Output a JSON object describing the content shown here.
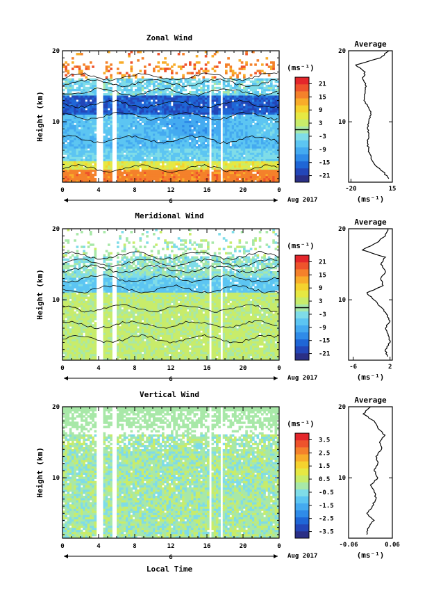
{
  "chart_data": [
    {
      "type": "heatmap",
      "panel": "zonal",
      "title": "Zonal Wind",
      "ylabel": "Height (km)",
      "xlabel": "",
      "x_ticks": [
        "0",
        "4",
        "8",
        "12",
        "16",
        "20",
        "0"
      ],
      "y_ticks": [
        "20",
        "10"
      ],
      "xlim": [
        0,
        24
      ],
      "ylim": [
        1.5,
        20
      ],
      "date_label": "6",
      "date_suffix": "Aug 2017",
      "colorbar": {
        "unit": "(ms⁻¹)",
        "ticks": [
          "21",
          "15",
          "9",
          "3",
          "-3",
          "-9",
          "-15",
          "-21"
        ],
        "range": [
          -24,
          24
        ],
        "black_line_at": 0,
        "colors": [
          "#2a2f86",
          "#2346b8",
          "#1f66d6",
          "#2f8be8",
          "#44aaf0",
          "#5cc5f2",
          "#7fdce8",
          "#a8e8a8",
          "#c8ec6a",
          "#e6e843",
          "#f5d22e",
          "#f8ac2a",
          "#f4812b",
          "#ee532c",
          "#e4262b"
        ]
      },
      "data_gaps_hours": [
        [
          3.8,
          4.4
        ],
        [
          5.6,
          6.1
        ],
        [
          16.2,
          16.6
        ],
        [
          17.4,
          17.8
        ]
      ],
      "profile": {
        "title": "Average",
        "xlabel": "(ms⁻¹)",
        "x_ticks": [
          "-20",
          "15"
        ],
        "xlim": [
          -22,
          15
        ],
        "y_ticks": [
          "20",
          "10"
        ],
        "heights": [
          2,
          3,
          4,
          5,
          6,
          7,
          8,
          9,
          10,
          11,
          12,
          13,
          14,
          15,
          16,
          17,
          18,
          19,
          20
        ],
        "values": [
          12,
          7,
          0,
          -3,
          -5,
          -6,
          -5,
          -6,
          -5,
          -3,
          -5,
          -9,
          -8,
          -7,
          -10,
          -8,
          -16,
          5,
          12
        ]
      }
    },
    {
      "type": "heatmap",
      "panel": "meridional",
      "title": "Meridional Wind",
      "ylabel": "Height (km)",
      "xlabel": "",
      "x_ticks": [
        "0",
        "4",
        "8",
        "12",
        "16",
        "20",
        "0"
      ],
      "y_ticks": [
        "20",
        "10"
      ],
      "xlim": [
        0,
        24
      ],
      "ylim": [
        1.5,
        20
      ],
      "date_label": "6",
      "date_suffix": "Aug 2017",
      "colorbar": {
        "unit": "(ms⁻¹)",
        "ticks": [
          "21",
          "15",
          "9",
          "3",
          "-3",
          "-9",
          "-15",
          "-21"
        ],
        "range": [
          -24,
          24
        ],
        "black_line_at": 0,
        "colors": [
          "#2a2f86",
          "#2346b8",
          "#1f66d6",
          "#2f8be8",
          "#44aaf0",
          "#5cc5f2",
          "#7fdce8",
          "#a8e8a8",
          "#c8ec6a",
          "#e6e843",
          "#f5d22e",
          "#f8ac2a",
          "#f4812b",
          "#ee532c",
          "#e4262b"
        ]
      },
      "data_gaps_hours": [
        [
          3.8,
          4.4
        ],
        [
          5.6,
          6.1
        ],
        [
          16.2,
          16.6
        ],
        [
          17.4,
          17.8
        ]
      ],
      "profile": {
        "title": "Average",
        "xlabel": "(ms⁻¹)",
        "x_ticks": [
          "-6",
          "2"
        ],
        "xlim": [
          -7,
          2.5
        ],
        "y_ticks": [
          "20",
          "10"
        ],
        "heights": [
          2,
          3,
          4,
          5,
          6,
          7,
          8,
          9,
          10,
          11,
          12,
          13,
          14,
          15,
          16,
          17,
          18,
          19,
          20
        ],
        "values": [
          1.5,
          1,
          2,
          1.6,
          1,
          2,
          1.2,
          0,
          -1.5,
          -3,
          0.5,
          0,
          1,
          0,
          1,
          -4,
          -1,
          1,
          1.5
        ]
      }
    },
    {
      "type": "heatmap",
      "panel": "vertical",
      "title": "Vertical Wind",
      "ylabel": "Height (km)",
      "xlabel": "Local Time",
      "x_ticks": [
        "0",
        "4",
        "8",
        "12",
        "16",
        "20",
        "0"
      ],
      "y_ticks": [
        "20",
        "10"
      ],
      "xlim": [
        0,
        24
      ],
      "ylim": [
        1.5,
        20
      ],
      "date_label": "6",
      "date_suffix": "Aug 2017",
      "colorbar": {
        "unit": "(ms⁻¹)",
        "ticks": [
          "3.5",
          "2.5",
          "1.5",
          "0.5",
          "-0.5",
          "-1.5",
          "-2.5",
          "-3.5"
        ],
        "range": [
          -4,
          4
        ],
        "black_line_at": null,
        "colors": [
          "#2a2f86",
          "#2346b8",
          "#1f66d6",
          "#2f8be8",
          "#44aaf0",
          "#5cc5f2",
          "#7fdce8",
          "#a8e8a8",
          "#c8ec6a",
          "#e6e843",
          "#f5d22e",
          "#f8ac2a",
          "#f4812b",
          "#ee532c",
          "#e4262b"
        ]
      },
      "data_gaps_hours": [
        [
          3.8,
          4.4
        ],
        [
          5.6,
          6.1
        ],
        [
          16.2,
          16.6
        ],
        [
          17.4,
          17.8
        ]
      ],
      "profile": {
        "title": "Average",
        "xlabel": "(ms⁻¹)",
        "x_ticks": [
          "-0.06",
          "0.06"
        ],
        "xlim": [
          -0.06,
          0.06
        ],
        "y_ticks": [
          "20",
          "10"
        ],
        "heights": [
          2,
          3,
          4,
          5,
          6,
          7,
          8,
          9,
          10,
          11,
          12,
          13,
          14,
          15,
          16,
          17,
          18,
          19,
          20
        ],
        "values": [
          -0.01,
          -0.005,
          0.01,
          -0.01,
          0.005,
          0.015,
          0.01,
          0.0,
          0.02,
          0.01,
          0.02,
          0.015,
          0.03,
          0.025,
          0.04,
          0.02,
          0.01,
          -0.02,
          0.0
        ]
      }
    }
  ]
}
